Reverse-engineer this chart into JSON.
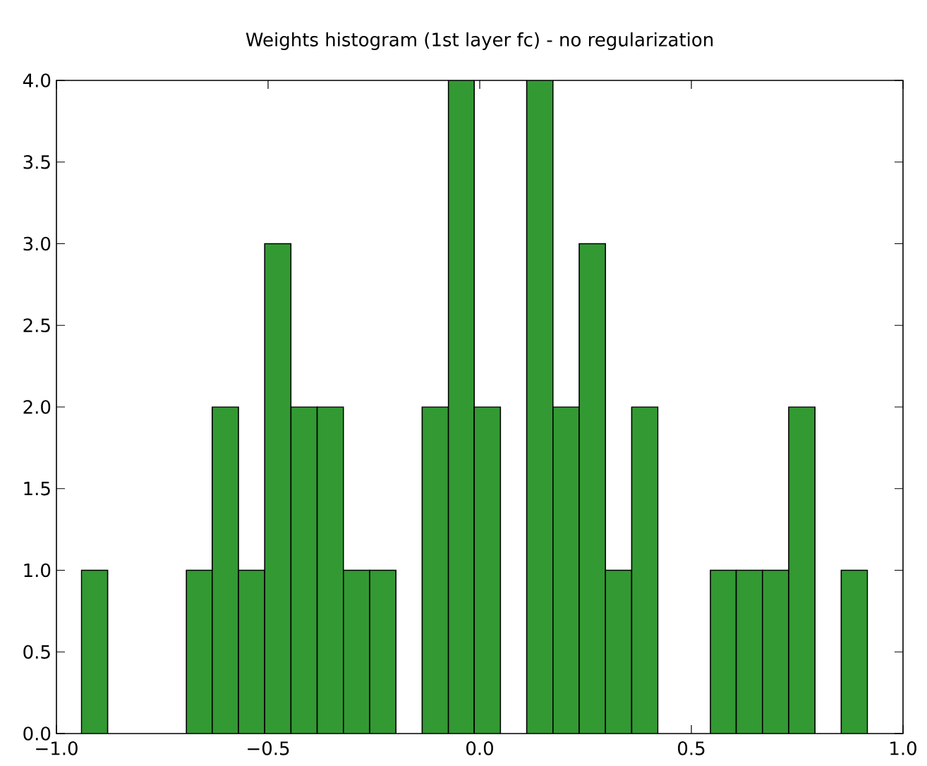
{
  "chart_data": {
    "type": "histogram",
    "title": "Weights histogram (1st layer fc) - no regularization",
    "bins": [
      -0.941,
      -0.879,
      -0.693,
      -0.632,
      -0.57,
      -0.508,
      -0.446,
      -0.384,
      -0.322,
      -0.26,
      -0.198,
      -0.136,
      -0.074,
      -0.013,
      0.049,
      0.111,
      0.173,
      0.235,
      0.297,
      0.359,
      0.421,
      0.545,
      0.606,
      0.668,
      0.73,
      0.792,
      0.854,
      0.916
    ],
    "values": [
      1,
      0,
      1,
      2,
      1,
      3,
      2,
      2,
      1,
      1,
      0,
      2,
      4,
      2,
      0,
      4,
      2,
      3,
      1,
      2,
      0,
      1,
      1,
      1,
      2,
      0,
      1
    ],
    "color": "#339933",
    "xlim": [
      -1.0,
      1.0
    ],
    "xticks": [
      {
        "value": -1.0,
        "label": "−1.0"
      },
      {
        "value": -0.5,
        "label": "−0.5"
      },
      {
        "value": 0.0,
        "label": "0.0"
      },
      {
        "value": 0.5,
        "label": "0.5"
      },
      {
        "value": 1.0,
        "label": "1.0"
      }
    ],
    "ylim": [
      0.0,
      4.0
    ],
    "yticks": [
      {
        "value": 0.0,
        "label": "0.0"
      },
      {
        "value": 0.5,
        "label": "0.5"
      },
      {
        "value": 1.0,
        "label": "1.0"
      },
      {
        "value": 1.5,
        "label": "1.5"
      },
      {
        "value": 2.0,
        "label": "2.0"
      },
      {
        "value": 2.5,
        "label": "2.5"
      },
      {
        "value": 3.0,
        "label": "3.0"
      },
      {
        "value": 3.5,
        "label": "3.5"
      },
      {
        "value": 4.0,
        "label": "4.0"
      }
    ],
    "grid": false
  }
}
